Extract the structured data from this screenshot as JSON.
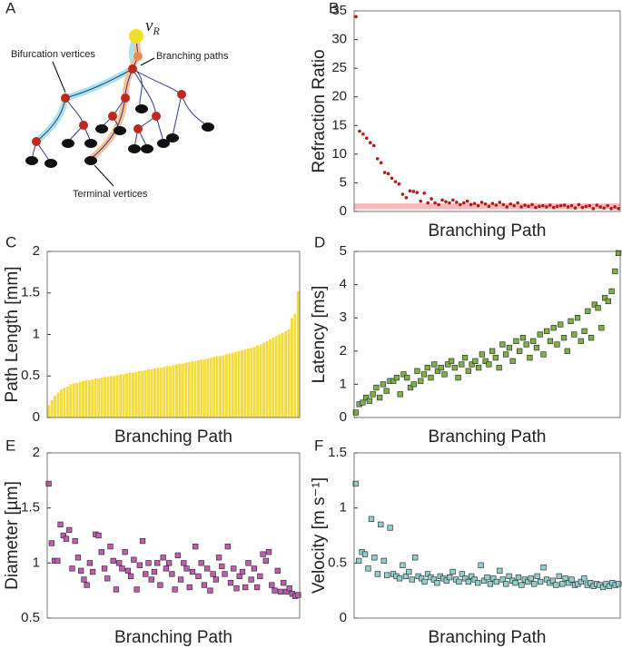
{
  "diagram": {
    "panel_label": "A",
    "root_label": "v",
    "root_subscript": "R",
    "labels": [
      "Bifurcation vertices",
      "Branching paths",
      "Terminal vertices"
    ]
  },
  "chart_data": [
    {
      "type": "scatter",
      "marker": "circle",
      "panel_label": "B",
      "ylabel": "Refraction Ratio",
      "xlabel": "Branching Path",
      "color": "#b01c1c",
      "band": {
        "range": [
          0.4,
          1.4
        ],
        "color": "#f6b8b8"
      },
      "ylim": [
        0,
        35
      ],
      "yticks": [
        0,
        5,
        10,
        15,
        20,
        25,
        30,
        35
      ],
      "values": [
        34,
        14,
        13.5,
        12.8,
        12,
        11.5,
        9.2,
        8.5,
        6.8,
        6.6,
        5.8,
        5.2,
        4.8,
        3,
        2.4,
        3.6,
        3.5,
        3.3,
        1.8,
        3.2,
        1.5,
        2.2,
        1.5,
        1.2,
        2,
        1.7,
        1.5,
        2,
        1.6,
        1.2,
        1.5,
        1.8,
        1.2,
        1.4,
        1.0,
        1.6,
        1.3,
        0.9,
        1.4,
        1.1,
        1.6,
        1.2,
        0.8,
        1.3,
        1.0,
        1.5,
        0.8,
        1.1,
        0.9,
        1.2,
        0.7,
        0.9,
        1.0,
        0.8,
        1.1,
        0.7,
        0.9,
        1.0,
        1.1,
        0.8,
        1.0,
        0.6,
        1.2,
        0.7,
        0.9,
        1.0,
        0.5,
        1.1,
        0.8,
        0.6,
        1.0,
        0.5,
        0.8,
        0.5
      ]
    },
    {
      "type": "bar",
      "panel_label": "C",
      "ylabel": "Path Length [mm]",
      "xlabel": "Branching Path",
      "color": "#f3dc3c",
      "ylim": [
        0,
        2
      ],
      "yticks": [
        0,
        0.5,
        1,
        1.5,
        2
      ],
      "values": [
        0.15,
        0.21,
        0.26,
        0.3,
        0.34,
        0.36,
        0.37,
        0.4,
        0.41,
        0.42,
        0.43,
        0.44,
        0.45,
        0.45,
        0.46,
        0.47,
        0.47,
        0.48,
        0.49,
        0.49,
        0.5,
        0.5,
        0.51,
        0.52,
        0.52,
        0.53,
        0.54,
        0.54,
        0.55,
        0.56,
        0.56,
        0.57,
        0.58,
        0.58,
        0.59,
        0.6,
        0.6,
        0.61,
        0.62,
        0.62,
        0.63,
        0.64,
        0.65,
        0.65,
        0.66,
        0.67,
        0.68,
        0.68,
        0.69,
        0.7,
        0.7,
        0.71,
        0.72,
        0.73,
        0.74,
        0.74,
        0.75,
        0.76,
        0.77,
        0.78,
        0.79,
        0.8,
        0.81,
        0.82,
        0.83,
        0.84,
        0.85,
        0.87,
        0.88,
        0.9,
        0.92,
        0.94,
        0.96,
        0.98,
        1.0,
        1.02,
        1.04,
        1.06,
        1.2,
        1.25,
        1.52
      ]
    },
    {
      "type": "scatter",
      "marker": "square",
      "panel_label": "D",
      "ylabel": "Latency [ms]",
      "xlabel": "Branching Path",
      "color": "#7cb342",
      "ylim": [
        0,
        5
      ],
      "yticks": [
        0,
        1,
        2,
        3,
        4,
        5
      ],
      "values": [
        0.15,
        0.4,
        0.45,
        0.6,
        0.5,
        0.7,
        0.9,
        0.6,
        1.0,
        0.8,
        1.1,
        1.1,
        1.2,
        0.7,
        1.3,
        1.2,
        0.9,
        1.0,
        1.4,
        1.1,
        1.3,
        1.5,
        1.2,
        1.6,
        1.4,
        1.5,
        1.3,
        1.6,
        1.7,
        1.5,
        1.2,
        1.6,
        1.8,
        1.4,
        1.6,
        1.7,
        1.5,
        1.9,
        1.7,
        1.6,
        2.0,
        1.8,
        1.5,
        2.2,
        1.9,
        2.1,
        1.7,
        2.3,
        2.0,
        2.4,
        2.2,
        1.8,
        2.3,
        2.1,
        2.5,
        1.9,
        2.6,
        2.3,
        2.7,
        2.2,
        2.8,
        2.4,
        2.0,
        2.9,
        2.5,
        3.0,
        2.3,
        2.6,
        3.2,
        2.4,
        3.4,
        3.3,
        2.7,
        3.6,
        3.5,
        3.8,
        4.4,
        4.95
      ]
    },
    {
      "type": "scatter",
      "marker": "square",
      "panel_label": "E",
      "ylabel": "Diameter [µm]",
      "xlabel": "Branching Path",
      "color": "#c25bb4",
      "ylim": [
        0.5,
        2
      ],
      "yticks": [
        0.5,
        1,
        1.5,
        2
      ],
      "values": [
        1.72,
        1.18,
        1.02,
        1.02,
        1.35,
        1.25,
        1.22,
        1.3,
        0.95,
        1.2,
        1.05,
        0.93,
        0.85,
        0.8,
        1.0,
        0.92,
        1.26,
        1.25,
        1.1,
        0.95,
        0.86,
        1.15,
        1.02,
        0.76,
        1.0,
        0.95,
        1.1,
        0.93,
        0.88,
        1.03,
        0.76,
        0.98,
        1.2,
        0.9,
        1.0,
        0.85,
        0.92,
        1.0,
        0.8,
        1.05,
        0.95,
        1.0,
        0.9,
        0.76,
        1.07,
        0.85,
        1.0,
        0.95,
        0.78,
        0.92,
        1.15,
        0.88,
        1.0,
        0.8,
        0.95,
        0.75,
        0.9,
        0.85,
        1.05,
        0.97,
        0.9,
        1.15,
        0.82,
        0.95,
        0.77,
        0.88,
        0.92,
        0.78,
        1.0,
        0.85,
        0.95,
        0.78,
        0.88,
        1.08,
        1.02,
        1.1,
        0.8,
        0.75,
        0.93,
        0.74,
        0.82,
        0.74,
        0.77,
        0.72,
        0.7,
        0.71
      ]
    },
    {
      "type": "scatter",
      "marker": "square",
      "panel_label": "F",
      "ylabel": "Velocity [m s⁻¹]",
      "xlabel": "Branching Path",
      "color": "#92d0d0",
      "ylim": [
        0,
        1.5
      ],
      "yticks": [
        0,
        0.5,
        1,
        1.5
      ],
      "values": [
        1.22,
        0.52,
        0.6,
        0.58,
        0.45,
        0.9,
        0.55,
        0.4,
        0.85,
        0.52,
        0.39,
        0.82,
        0.4,
        0.38,
        0.36,
        0.48,
        0.38,
        0.42,
        0.35,
        0.55,
        0.38,
        0.36,
        0.33,
        0.4,
        0.37,
        0.35,
        0.32,
        0.38,
        0.36,
        0.34,
        0.37,
        0.42,
        0.35,
        0.33,
        0.4,
        0.36,
        0.33,
        0.38,
        0.35,
        0.32,
        0.48,
        0.34,
        0.37,
        0.31,
        0.36,
        0.33,
        0.43,
        0.35,
        0.31,
        0.38,
        0.34,
        0.32,
        0.37,
        0.3,
        0.35,
        0.33,
        0.36,
        0.31,
        0.38,
        0.33,
        0.46,
        0.35,
        0.32,
        0.34,
        0.3,
        0.38,
        0.31,
        0.36,
        0.32,
        0.35,
        0.3,
        0.31,
        0.33,
        0.36,
        0.3,
        0.32,
        0.29,
        0.31,
        0.3,
        0.28,
        0.31,
        0.29,
        0.32,
        0.3,
        0.31
      ]
    }
  ]
}
